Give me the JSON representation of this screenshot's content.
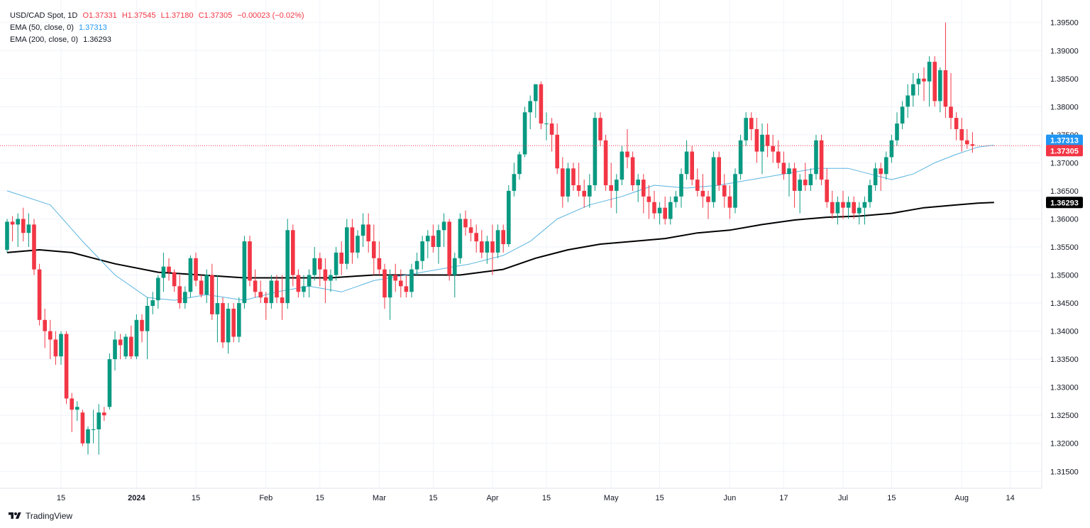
{
  "legend": {
    "symbol": "USD/CAD Spot, 1D",
    "open": "O1.37331",
    "high": "H1.37545",
    "low": "L1.37180",
    "close": "C1.37305",
    "change": "−0.00023 (−0.02%)",
    "ema50_label": "EMA (50, close, 0)",
    "ema50_value": "1.37313",
    "ema200_label": "EMA (200, close, 0)",
    "ema200_value": "1.36293"
  },
  "brand": {
    "name": "TradingView"
  },
  "colors": {
    "up": "#089981",
    "down": "#f23645",
    "ema50": "#5ab4e0",
    "ema200": "#000000",
    "grid": "#f0f3fa",
    "axis_text": "#131722"
  },
  "chart_data": {
    "type": "candlestick",
    "ylim": [
      1.312,
      1.398
    ],
    "y_ticks": [
      "1.39500",
      "1.39000",
      "1.38500",
      "1.38000",
      "1.37500",
      "1.37000",
      "1.36500",
      "1.36000",
      "1.35500",
      "1.35000",
      "1.34500",
      "1.34000",
      "1.33500",
      "1.33000",
      "1.32500",
      "1.32000",
      "1.31500"
    ],
    "x_ticks": [
      {
        "label": "15",
        "i": 10
      },
      {
        "label": "2024",
        "i": 24
      },
      {
        "label": "15",
        "i": 35
      },
      {
        "label": "Feb",
        "i": 48
      },
      {
        "label": "15",
        "i": 58
      },
      {
        "label": "Mar",
        "i": 69
      },
      {
        "label": "15",
        "i": 79
      },
      {
        "label": "Apr",
        " i": 0,
        "i": 90
      },
      {
        "label": "15",
        "i": 100
      },
      {
        "label": "May",
        "i": 112
      },
      {
        "label": "15",
        "i": 121
      },
      {
        "label": "Jun",
        "i": 134
      },
      {
        "label": "17",
        "i": 144
      },
      {
        "label": "Jul",
        "i": 155
      },
      {
        "label": "15",
        "i": 164
      },
      {
        "label": "Aug",
        "i": 177
      },
      {
        "label": "14",
        "i": 186
      }
    ],
    "price_labels": [
      {
        "name": "ema50",
        "value": 1.37313,
        "text": "1.37313"
      },
      {
        "name": "last",
        "value": 1.37305,
        "text": "1.37305"
      },
      {
        "name": "ema200",
        "value": 1.36293,
        "text": "1.36293"
      }
    ],
    "ohlc": [
      [
        1.3545,
        1.36,
        1.354,
        1.3595
      ],
      [
        1.3595,
        1.3605,
        1.356,
        1.359
      ],
      [
        1.359,
        1.361,
        1.355,
        1.36
      ],
      [
        1.36,
        1.362,
        1.356,
        1.3575
      ],
      [
        1.3575,
        1.361,
        1.355,
        1.359
      ],
      [
        1.359,
        1.36,
        1.35,
        1.351
      ],
      [
        1.351,
        1.352,
        1.341,
        1.342
      ],
      [
        1.342,
        1.344,
        1.337,
        1.34
      ],
      [
        1.34,
        1.342,
        1.335,
        1.3385
      ],
      [
        1.3385,
        1.34,
        1.334,
        1.3355
      ],
      [
        1.3355,
        1.34,
        1.334,
        1.3395
      ],
      [
        1.3395,
        1.34,
        1.327,
        1.328
      ],
      [
        1.328,
        1.329,
        1.322,
        1.326
      ],
      [
        1.326,
        1.3275,
        1.324,
        1.3265
      ],
      [
        1.3255,
        1.326,
        1.3195,
        1.32
      ],
      [
        1.32,
        1.323,
        1.318,
        1.3225
      ],
      [
        1.3225,
        1.326,
        1.32,
        1.3225
      ],
      [
        1.3225,
        1.327,
        1.318,
        1.3255
      ],
      [
        1.3255,
        1.3265,
        1.324,
        1.325
      ],
      [
        1.3265,
        1.336,
        1.326,
        1.335
      ],
      [
        1.335,
        1.34,
        1.333,
        1.3385
      ],
      [
        1.3385,
        1.3395,
        1.335,
        1.3375
      ],
      [
        1.3355,
        1.3395,
        1.335,
        1.339
      ],
      [
        1.339,
        1.341,
        1.335,
        1.3355
      ],
      [
        1.3355,
        1.343,
        1.335,
        1.342
      ],
      [
        1.342,
        1.343,
        1.338,
        1.34
      ],
      [
        1.34,
        1.346,
        1.335,
        1.3445
      ],
      [
        1.3445,
        1.347,
        1.343,
        1.3455
      ],
      [
        1.3455,
        1.35,
        1.344,
        1.3495
      ],
      [
        1.3495,
        1.354,
        1.347,
        1.3515
      ],
      [
        1.3515,
        1.353,
        1.349,
        1.3505
      ],
      [
        1.3505,
        1.351,
        1.347,
        1.348
      ],
      [
        1.348,
        1.35,
        1.344,
        1.345
      ],
      [
        1.345,
        1.348,
        1.344,
        1.347
      ],
      [
        1.347,
        1.3535,
        1.346,
        1.353
      ],
      [
        1.353,
        1.354,
        1.348,
        1.349
      ],
      [
        1.349,
        1.35,
        1.346,
        1.3465
      ],
      [
        1.3465,
        1.351,
        1.345,
        1.35
      ],
      [
        1.35,
        1.352,
        1.342,
        1.343
      ],
      [
        1.343,
        1.35,
        1.338,
        1.345
      ],
      [
        1.345,
        1.346,
        1.337,
        1.338
      ],
      [
        1.338,
        1.345,
        1.336,
        1.344
      ],
      [
        1.344,
        1.345,
        1.338,
        1.339
      ],
      [
        1.339,
        1.346,
        1.338,
        1.345
      ],
      [
        1.345,
        1.357,
        1.344,
        1.356
      ],
      [
        1.356,
        1.357,
        1.348,
        1.349
      ],
      [
        1.349,
        1.351,
        1.346,
        1.347
      ],
      [
        1.347,
        1.349,
        1.345,
        1.346
      ],
      [
        1.346,
        1.347,
        1.342,
        1.345
      ],
      [
        1.345,
        1.35,
        1.344,
        1.349
      ],
      [
        1.349,
        1.35,
        1.345,
        1.346
      ],
      [
        1.346,
        1.35,
        1.342,
        1.345
      ],
      [
        1.345,
        1.36,
        1.344,
        1.358
      ],
      [
        1.358,
        1.359,
        1.348,
        1.35
      ],
      [
        1.35,
        1.351,
        1.346,
        1.347
      ],
      [
        1.347,
        1.35,
        1.346,
        1.348
      ],
      [
        1.348,
        1.351,
        1.346,
        1.35
      ],
      [
        1.35,
        1.355,
        1.349,
        1.353
      ],
      [
        1.353,
        1.354,
        1.348,
        1.351
      ],
      [
        1.351,
        1.353,
        1.345,
        1.349
      ],
      [
        1.349,
        1.351,
        1.347,
        1.35
      ],
      [
        1.35,
        1.355,
        1.349,
        1.354
      ],
      [
        1.354,
        1.356,
        1.35,
        1.352
      ],
      [
        1.352,
        1.36,
        1.351,
        1.3585
      ],
      [
        1.3585,
        1.36,
        1.352,
        1.354
      ],
      [
        1.354,
        1.358,
        1.353,
        1.357
      ],
      [
        1.357,
        1.361,
        1.355,
        1.359
      ],
      [
        1.359,
        1.361,
        1.354,
        1.356
      ],
      [
        1.356,
        1.359,
        1.35,
        1.353
      ],
      [
        1.353,
        1.356,
        1.35,
        1.351
      ],
      [
        1.351,
        1.352,
        1.344,
        1.346
      ],
      [
        1.346,
        1.351,
        1.342,
        1.35
      ],
      [
        1.35,
        1.352,
        1.347,
        1.349
      ],
      [
        1.349,
        1.351,
        1.346,
        1.348
      ],
      [
        1.348,
        1.35,
        1.346,
        1.347
      ],
      [
        1.347,
        1.352,
        1.346,
        1.351
      ],
      [
        1.351,
        1.354,
        1.35,
        1.3525
      ],
      [
        1.3525,
        1.357,
        1.351,
        1.356
      ],
      [
        1.356,
        1.358,
        1.353,
        1.357
      ],
      [
        1.357,
        1.359,
        1.354,
        1.355
      ],
      [
        1.355,
        1.359,
        1.352,
        1.358
      ],
      [
        1.358,
        1.361,
        1.355,
        1.3595
      ],
      [
        1.3595,
        1.36,
        1.349,
        1.35
      ],
      [
        1.35,
        1.354,
        1.346,
        1.353
      ],
      [
        1.353,
        1.361,
        1.352,
        1.36
      ],
      [
        1.36,
        1.3615,
        1.357,
        1.3585
      ],
      [
        1.3585,
        1.36,
        1.356,
        1.3575
      ],
      [
        1.3575,
        1.359,
        1.354,
        1.356
      ],
      [
        1.356,
        1.358,
        1.353,
        1.354
      ],
      [
        1.354,
        1.357,
        1.352,
        1.356
      ],
      [
        1.356,
        1.359,
        1.35,
        1.354
      ],
      [
        1.354,
        1.359,
        1.353,
        1.358
      ],
      [
        1.358,
        1.359,
        1.354,
        1.3555
      ],
      [
        1.3555,
        1.366,
        1.355,
        1.365
      ],
      [
        1.365,
        1.37,
        1.364,
        1.368
      ],
      [
        1.368,
        1.372,
        1.367,
        1.3715
      ],
      [
        1.3715,
        1.38,
        1.371,
        1.379
      ],
      [
        1.379,
        1.382,
        1.376,
        1.381
      ],
      [
        1.381,
        1.384,
        1.378,
        1.384
      ],
      [
        1.384,
        1.3845,
        1.376,
        1.377
      ],
      [
        1.377,
        1.379,
        1.374,
        1.377
      ],
      [
        1.377,
        1.378,
        1.372,
        1.375
      ],
      [
        1.375,
        1.377,
        1.368,
        1.369
      ],
      [
        1.369,
        1.371,
        1.362,
        1.364
      ],
      [
        1.364,
        1.37,
        1.363,
        1.369
      ],
      [
        1.369,
        1.37,
        1.365,
        1.366
      ],
      [
        1.366,
        1.37,
        1.364,
        1.365
      ],
      [
        1.365,
        1.367,
        1.362,
        1.364
      ],
      [
        1.364,
        1.368,
        1.362,
        1.366
      ],
      [
        1.366,
        1.379,
        1.365,
        1.378
      ],
      [
        1.378,
        1.379,
        1.373,
        1.374
      ],
      [
        1.374,
        1.375,
        1.365,
        1.366
      ],
      [
        1.366,
        1.37,
        1.362,
        1.365
      ],
      [
        1.365,
        1.368,
        1.361,
        1.367
      ],
      [
        1.367,
        1.373,
        1.366,
        1.372
      ],
      [
        1.372,
        1.376,
        1.369,
        1.371
      ],
      [
        1.371,
        1.372,
        1.365,
        1.366
      ],
      [
        1.366,
        1.368,
        1.363,
        1.367
      ],
      [
        1.367,
        1.368,
        1.361,
        1.364
      ],
      [
        1.364,
        1.366,
        1.36,
        1.363
      ],
      [
        1.363,
        1.365,
        1.36,
        1.361
      ],
      [
        1.361,
        1.363,
        1.359,
        1.362
      ],
      [
        1.362,
        1.364,
        1.359,
        1.36
      ],
      [
        1.36,
        1.364,
        1.359,
        1.363
      ],
      [
        1.363,
        1.365,
        1.362,
        1.364
      ],
      [
        1.364,
        1.369,
        1.362,
        1.368
      ],
      [
        1.368,
        1.374,
        1.367,
        1.372
      ],
      [
        1.372,
        1.373,
        1.366,
        1.367
      ],
      [
        1.367,
        1.369,
        1.364,
        1.365
      ],
      [
        1.365,
        1.368,
        1.362,
        1.364
      ],
      [
        1.364,
        1.365,
        1.36,
        1.363
      ],
      [
        1.363,
        1.372,
        1.362,
        1.371
      ],
      [
        1.371,
        1.372,
        1.365,
        1.366
      ],
      [
        1.366,
        1.368,
        1.362,
        1.364
      ],
      [
        1.364,
        1.366,
        1.36,
        1.362
      ],
      [
        1.362,
        1.369,
        1.361,
        1.368
      ],
      [
        1.368,
        1.375,
        1.367,
        1.374
      ],
      [
        1.374,
        1.379,
        1.373,
        1.378
      ],
      [
        1.378,
        1.379,
        1.374,
        1.376
      ],
      [
        1.376,
        1.378,
        1.37,
        1.372
      ],
      [
        1.372,
        1.377,
        1.368,
        1.375
      ],
      [
        1.375,
        1.377,
        1.371,
        1.373
      ],
      [
        1.373,
        1.375,
        1.37,
        1.372
      ],
      [
        1.372,
        1.374,
        1.369,
        1.37
      ],
      [
        1.37,
        1.372,
        1.367,
        1.368
      ],
      [
        1.368,
        1.37,
        1.364,
        1.369
      ],
      [
        1.369,
        1.37,
        1.362,
        1.365
      ],
      [
        1.365,
        1.368,
        1.361,
        1.367
      ],
      [
        1.367,
        1.37,
        1.365,
        1.366
      ],
      [
        1.366,
        1.369,
        1.365,
        1.368
      ],
      [
        1.368,
        1.375,
        1.367,
        1.374
      ],
      [
        1.374,
        1.375,
        1.366,
        1.367
      ],
      [
        1.367,
        1.369,
        1.362,
        1.363
      ],
      [
        1.363,
        1.365,
        1.36,
        1.361
      ],
      [
        1.361,
        1.364,
        1.359,
        1.363
      ],
      [
        1.363,
        1.365,
        1.36,
        1.362
      ],
      [
        1.362,
        1.364,
        1.36,
        1.363
      ],
      [
        1.363,
        1.364,
        1.36,
        1.361
      ],
      [
        1.361,
        1.363,
        1.359,
        1.362
      ],
      [
        1.362,
        1.364,
        1.359,
        1.363
      ],
      [
        1.363,
        1.367,
        1.362,
        1.366
      ],
      [
        1.366,
        1.37,
        1.365,
        1.369
      ],
      [
        1.369,
        1.37,
        1.365,
        1.368
      ],
      [
        1.368,
        1.372,
        1.367,
        1.371
      ],
      [
        1.371,
        1.375,
        1.37,
        1.374
      ],
      [
        1.374,
        1.379,
        1.373,
        1.377
      ],
      [
        1.377,
        1.381,
        1.376,
        1.38
      ],
      [
        1.38,
        1.384,
        1.378,
        1.382
      ],
      [
        1.382,
        1.386,
        1.38,
        1.384
      ],
      [
        1.384,
        1.386,
        1.382,
        1.385
      ],
      [
        1.385,
        1.387,
        1.381,
        1.3845
      ],
      [
        1.3845,
        1.389,
        1.38,
        1.388
      ],
      [
        1.388,
        1.389,
        1.38,
        1.381
      ],
      [
        1.381,
        1.387,
        1.379,
        1.3865
      ],
      [
        1.3865,
        1.395,
        1.378,
        1.38
      ],
      [
        1.38,
        1.386,
        1.376,
        1.378
      ],
      [
        1.378,
        1.379,
        1.374,
        1.376
      ],
      [
        1.376,
        1.378,
        1.372,
        1.374
      ],
      [
        1.374,
        1.376,
        1.3725,
        1.3733
      ],
      [
        1.37331,
        1.37545,
        1.3718,
        1.37305
      ]
    ],
    "ema50": [
      [
        0,
        1.365
      ],
      [
        8,
        1.3625
      ],
      [
        14,
        1.356
      ],
      [
        20,
        1.35
      ],
      [
        26,
        1.346
      ],
      [
        31,
        1.3455
      ],
      [
        37,
        1.3465
      ],
      [
        44,
        1.3455
      ],
      [
        50,
        1.347
      ],
      [
        56,
        1.348
      ],
      [
        62,
        1.347
      ],
      [
        68,
        1.349
      ],
      [
        74,
        1.35
      ],
      [
        80,
        1.351
      ],
      [
        86,
        1.352
      ],
      [
        92,
        1.3535
      ],
      [
        97,
        1.356
      ],
      [
        102,
        1.36
      ],
      [
        108,
        1.3625
      ],
      [
        114,
        1.364
      ],
      [
        120,
        1.366
      ],
      [
        126,
        1.3655
      ],
      [
        132,
        1.366
      ],
      [
        138,
        1.367
      ],
      [
        144,
        1.368
      ],
      [
        150,
        1.369
      ],
      [
        156,
        1.369
      ],
      [
        160,
        1.368
      ],
      [
        164,
        1.367
      ],
      [
        168,
        1.368
      ],
      [
        172,
        1.37
      ],
      [
        176,
        1.3715
      ],
      [
        180,
        1.3728
      ],
      [
        183,
        1.37313
      ]
    ],
    "ema200": [
      [
        0,
        1.354
      ],
      [
        6,
        1.3545
      ],
      [
        12,
        1.354
      ],
      [
        20,
        1.352
      ],
      [
        28,
        1.3505
      ],
      [
        36,
        1.35
      ],
      [
        44,
        1.3495
      ],
      [
        52,
        1.3495
      ],
      [
        60,
        1.3495
      ],
      [
        68,
        1.35
      ],
      [
        76,
        1.35
      ],
      [
        84,
        1.35
      ],
      [
        92,
        1.351
      ],
      [
        98,
        1.353
      ],
      [
        104,
        1.3545
      ],
      [
        110,
        1.3555
      ],
      [
        116,
        1.356
      ],
      [
        122,
        1.3565
      ],
      [
        128,
        1.3575
      ],
      [
        134,
        1.358
      ],
      [
        140,
        1.359
      ],
      [
        146,
        1.3598
      ],
      [
        152,
        1.3603
      ],
      [
        158,
        1.3605
      ],
      [
        164,
        1.361
      ],
      [
        170,
        1.362
      ],
      [
        176,
        1.3625
      ],
      [
        180,
        1.3628
      ],
      [
        183,
        1.36293
      ]
    ]
  }
}
